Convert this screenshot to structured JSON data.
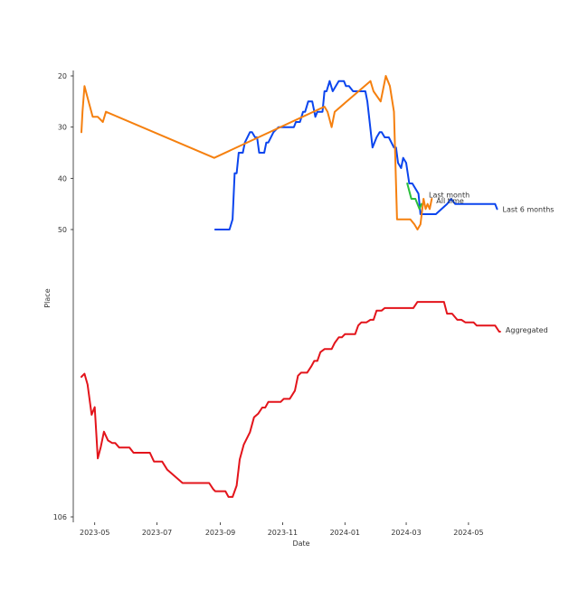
{
  "chart_data": {
    "type": "line",
    "title": "",
    "xlabel": "Date",
    "ylabel": "Place",
    "x_axis": {
      "kind": "date",
      "range": [
        "2023-04-10",
        "2024-06-25"
      ],
      "ticks": [
        "2023-05",
        "2023-07",
        "2023-09",
        "2023-11",
        "2024-01",
        "2024-03",
        "2024-05"
      ]
    },
    "y_axis": {
      "inverted": true,
      "scale": "piecewise",
      "range": [
        20,
        106
      ],
      "ticks": [
        20,
        30,
        40,
        50,
        106
      ],
      "tick_labels": [
        "20",
        "30",
        "40",
        "50",
        "106"
      ]
    },
    "grid": false,
    "series": [
      {
        "name": "Last 6 months",
        "color": "#0b45ee",
        "points": [
          [
            "2023-08-27",
            50
          ],
          [
            "2023-09-10",
            50
          ],
          [
            "2023-09-13",
            48
          ],
          [
            "2023-09-15",
            39
          ],
          [
            "2023-09-17",
            39
          ],
          [
            "2023-09-19",
            35
          ],
          [
            "2023-09-23",
            35
          ],
          [
            "2023-09-25",
            33
          ],
          [
            "2023-09-30",
            31
          ],
          [
            "2023-10-02",
            31
          ],
          [
            "2023-10-05",
            32
          ],
          [
            "2023-10-07",
            32
          ],
          [
            "2023-10-09",
            35
          ],
          [
            "2023-10-14",
            35
          ],
          [
            "2023-10-16",
            33
          ],
          [
            "2023-10-18",
            33
          ],
          [
            "2023-10-23",
            31
          ],
          [
            "2023-10-28",
            30
          ],
          [
            "2023-11-12",
            30
          ],
          [
            "2023-11-14",
            29
          ],
          [
            "2023-11-18",
            29
          ],
          [
            "2023-11-21",
            27
          ],
          [
            "2023-11-23",
            27
          ],
          [
            "2023-11-26",
            25
          ],
          [
            "2023-11-30",
            25
          ],
          [
            "2023-12-03",
            28
          ],
          [
            "2023-12-05",
            27
          ],
          [
            "2023-12-10",
            27
          ],
          [
            "2023-12-12",
            23
          ],
          [
            "2023-12-14",
            23
          ],
          [
            "2023-12-17",
            21
          ],
          [
            "2023-12-20",
            23
          ],
          [
            "2023-12-26",
            21
          ],
          [
            "2023-12-31",
            21
          ],
          [
            "2024-01-02",
            22
          ],
          [
            "2024-01-05",
            22
          ],
          [
            "2024-01-09",
            23
          ],
          [
            "2024-01-21",
            23
          ],
          [
            "2024-01-23",
            25
          ],
          [
            "2024-01-28",
            34
          ],
          [
            "2024-02-01",
            32
          ],
          [
            "2024-02-04",
            31
          ],
          [
            "2024-02-06",
            31
          ],
          [
            "2024-02-09",
            32
          ],
          [
            "2024-02-13",
            32
          ],
          [
            "2024-02-18",
            34
          ],
          [
            "2024-02-20",
            34
          ],
          [
            "2024-02-22",
            37
          ],
          [
            "2024-02-25",
            38
          ],
          [
            "2024-02-27",
            36
          ],
          [
            "2024-03-01",
            37
          ],
          [
            "2024-03-04",
            41
          ],
          [
            "2024-03-07",
            41
          ],
          [
            "2024-03-13",
            43
          ],
          [
            "2024-03-15",
            47
          ],
          [
            "2024-03-30",
            47
          ],
          [
            "2024-04-10",
            45
          ],
          [
            "2024-04-14",
            44
          ],
          [
            "2024-04-18",
            45
          ],
          [
            "2024-05-27",
            45
          ],
          [
            "2024-05-29",
            46
          ]
        ]
      },
      {
        "name": "Last month",
        "color": "#2bbf3c",
        "points": [
          [
            "2024-03-02",
            41
          ],
          [
            "2024-03-06",
            44
          ],
          [
            "2024-03-10",
            44
          ],
          [
            "2024-03-12",
            45
          ],
          [
            "2024-03-14",
            46
          ],
          [
            "2024-03-16",
            45
          ]
        ]
      },
      {
        "name": "All time",
        "color": "#f5800f",
        "points": [
          [
            "2023-04-18",
            31
          ],
          [
            "2023-04-19",
            27
          ],
          [
            "2023-04-21",
            22
          ],
          [
            "2023-04-25",
            25
          ],
          [
            "2023-04-29",
            28
          ],
          [
            "2023-05-04",
            28
          ],
          [
            "2023-05-09",
            29
          ],
          [
            "2023-05-12",
            27
          ],
          [
            "2023-08-26",
            36
          ],
          [
            "2023-12-12",
            26
          ],
          [
            "2023-12-15",
            27
          ],
          [
            "2023-12-19",
            30
          ],
          [
            "2023-12-22",
            27
          ],
          [
            "2024-01-26",
            21
          ],
          [
            "2024-01-29",
            23
          ],
          [
            "2024-02-05",
            25
          ],
          [
            "2024-02-10",
            20
          ],
          [
            "2024-02-14",
            22
          ],
          [
            "2024-02-18",
            27
          ],
          [
            "2024-02-21",
            48
          ],
          [
            "2024-03-05",
            48
          ],
          [
            "2024-03-09",
            49
          ],
          [
            "2024-03-12",
            50
          ],
          [
            "2024-03-15",
            49
          ],
          [
            "2024-03-18",
            44
          ],
          [
            "2024-03-20",
            46
          ],
          [
            "2024-03-22",
            45
          ],
          [
            "2024-03-24",
            46
          ],
          [
            "2024-03-26",
            44
          ]
        ]
      },
      {
        "name": "Aggregated",
        "color": "#e3141b",
        "points": [
          [
            "2023-04-18",
            78.7
          ],
          [
            "2023-04-21",
            78.1
          ],
          [
            "2023-04-24",
            80.2
          ],
          [
            "2023-04-28",
            86.1
          ],
          [
            "2023-05-01",
            84.6
          ],
          [
            "2023-05-04",
            94.6
          ],
          [
            "2023-05-07",
            92.3
          ],
          [
            "2023-05-10",
            89.4
          ],
          [
            "2023-05-14",
            91.1
          ],
          [
            "2023-05-18",
            91.6
          ],
          [
            "2023-05-21",
            91.6
          ],
          [
            "2023-05-25",
            92.5
          ],
          [
            "2023-06-04",
            92.5
          ],
          [
            "2023-06-08",
            93.5
          ],
          [
            "2023-06-24",
            93.5
          ],
          [
            "2023-06-28",
            95.2
          ],
          [
            "2023-07-06",
            95.2
          ],
          [
            "2023-07-11",
            96.8
          ],
          [
            "2023-07-26",
            99.4
          ],
          [
            "2023-08-15",
            99.4
          ],
          [
            "2023-08-21",
            99.4
          ],
          [
            "2023-08-25",
            100.6
          ],
          [
            "2023-08-27",
            101.0
          ],
          [
            "2023-08-31",
            101.0
          ],
          [
            "2023-09-06",
            101.0
          ],
          [
            "2023-09-09",
            102.1
          ],
          [
            "2023-09-13",
            102.1
          ],
          [
            "2023-09-17",
            99.9
          ],
          [
            "2023-09-20",
            94.8
          ],
          [
            "2023-09-24",
            91.9
          ],
          [
            "2023-09-30",
            89.5
          ],
          [
            "2023-10-04",
            86.6
          ],
          [
            "2023-10-08",
            85.9
          ],
          [
            "2023-10-12",
            84.7
          ],
          [
            "2023-10-15",
            84.7
          ],
          [
            "2023-10-18",
            83.6
          ],
          [
            "2023-10-24",
            83.6
          ],
          [
            "2023-10-30",
            83.6
          ],
          [
            "2023-11-02",
            83.0
          ],
          [
            "2023-11-08",
            83.0
          ],
          [
            "2023-11-13",
            81.4
          ],
          [
            "2023-11-16",
            78.5
          ],
          [
            "2023-11-19",
            77.9
          ],
          [
            "2023-11-25",
            77.9
          ],
          [
            "2023-11-29",
            76.7
          ],
          [
            "2023-12-02",
            75.6
          ],
          [
            "2023-12-05",
            75.6
          ],
          [
            "2023-12-08",
            73.9
          ],
          [
            "2023-12-12",
            73.3
          ],
          [
            "2023-12-19",
            73.3
          ],
          [
            "2023-12-22",
            72.1
          ],
          [
            "2023-12-26",
            71.0
          ],
          [
            "2023-12-29",
            71.0
          ],
          [
            "2024-01-01",
            70.4
          ],
          [
            "2024-01-11",
            70.4
          ],
          [
            "2024-01-14",
            68.7
          ],
          [
            "2024-01-17",
            68.1
          ],
          [
            "2024-01-22",
            68.1
          ],
          [
            "2024-01-26",
            67.6
          ],
          [
            "2024-01-29",
            67.6
          ],
          [
            "2024-02-01",
            65.8
          ],
          [
            "2024-02-06",
            65.8
          ],
          [
            "2024-02-09",
            65.3
          ],
          [
            "2024-03-08",
            65.3
          ],
          [
            "2024-03-12",
            64.1
          ],
          [
            "2024-04-07",
            64.1
          ],
          [
            "2024-04-10",
            66.4
          ],
          [
            "2024-04-15",
            66.4
          ],
          [
            "2024-04-20",
            67.6
          ],
          [
            "2024-04-24",
            67.6
          ],
          [
            "2024-04-28",
            68.1
          ],
          [
            "2024-05-06",
            68.1
          ],
          [
            "2024-05-09",
            68.7
          ],
          [
            "2024-05-27",
            68.7
          ],
          [
            "2024-05-31",
            69.9
          ],
          [
            "2024-06-01",
            69.9
          ]
        ]
      }
    ]
  }
}
